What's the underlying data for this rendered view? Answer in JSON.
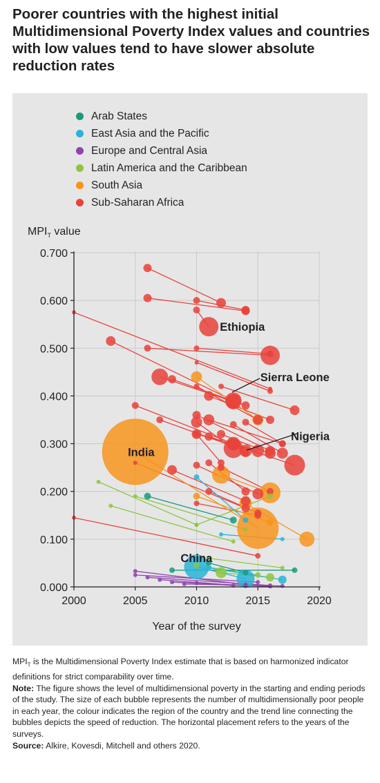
{
  "title": "Poorer countries with the highest initial Multidimensional Poverty Index values and countries with low values tend to have slower absolute reduction rates",
  "notes": {
    "definition_prefix": "MPI",
    "definition_sub": "T",
    "definition_rest": " is the Multidimensional Poverty Index estimate that is based on harmonized indicator definitions for strict comparability over time.",
    "note_label": "Note:",
    "note_text": " The figure shows the level of multidimensional poverty in the starting and ending periods of the study. The size of each bubble represents the number of multidimensionally poor people in each year, the colour indicates the region of the country and the trend line connecting the bubbles depicts the speed of reduction. The horizontal placement refers to the years of the surveys.",
    "source_label": "Source:",
    "source_text": " Alkire, Kovesdi, Mitchell and others 2020."
  },
  "chart_data": {
    "type": "scatter",
    "xlabel": "Year of the survey",
    "ylabel": "MPI",
    "ylabel_sub": "T",
    "ylabel_rest": " value",
    "xlim": [
      2000,
      2020
    ],
    "ylim": [
      0,
      0.7
    ],
    "xticks": [
      2000,
      2005,
      2010,
      2015,
      2020
    ],
    "xtick_labels": [
      "2000",
      "2005",
      "2010",
      "2015",
      "2020"
    ],
    "yticks": [
      0,
      0.1,
      0.2,
      0.3,
      0.4,
      0.5,
      0.6,
      0.7
    ],
    "ytick_labels": [
      "0.000",
      "0.100",
      "0.200",
      "0.300",
      "0.400",
      "0.500",
      "0.600",
      "0.700"
    ],
    "grid": true,
    "legend_position": "top-left",
    "regions": [
      {
        "name": "Arab States",
        "color": "#1a9a7c"
      },
      {
        "name": "East Asia and the Pacific",
        "color": "#2ab3d6"
      },
      {
        "name": "Europe and Central Asia",
        "color": "#8e44ad"
      },
      {
        "name": "Latin America and the Caribbean",
        "color": "#8dc63f"
      },
      {
        "name": "South Asia",
        "color": "#f7941d"
      },
      {
        "name": "Sub-Saharan Africa",
        "color": "#e8423a"
      }
    ],
    "annotations": [
      {
        "text": "Ethiopia",
        "x": 2011.9,
        "y": 0.545
      },
      {
        "text": "Sierra Leone",
        "x": 2015.2,
        "y": 0.44
      },
      {
        "text": "Nigeria",
        "x": 2017.7,
        "y": 0.316
      },
      {
        "text": "India",
        "x": 2004.4,
        "y": 0.283
      },
      {
        "text": "China",
        "x": 2008.7,
        "y": 0.061
      }
    ],
    "series": [
      {
        "region": 5,
        "x0": 2006,
        "y0": 0.668,
        "x1": 2012,
        "y1": 0.595,
        "s0": 6,
        "s1": 7
      },
      {
        "region": 5,
        "x0": 2006,
        "y0": 0.605,
        "x1": 2014,
        "y1": 0.578,
        "s0": 6,
        "s1": 6
      },
      {
        "region": 5,
        "x0": 2010,
        "y0": 0.6,
        "x1": 2014,
        "y1": 0.58,
        "s0": 5,
        "s1": 6
      },
      {
        "region": 5,
        "x0": 2010,
        "y0": 0.58,
        "x1": 2011,
        "y1": 0.545,
        "s0": 5,
        "s1": 14
      },
      {
        "region": 5,
        "x0": 2000,
        "y0": 0.575,
        "x1": 2016,
        "y1": 0.415,
        "s0": 3,
        "s1": 3
      },
      {
        "region": 5,
        "x0": 2003,
        "y0": 0.515,
        "x1": 2013,
        "y1": 0.39,
        "s0": 7,
        "s1": 12
      },
      {
        "region": 5,
        "x0": 2006,
        "y0": 0.5,
        "x1": 2016,
        "y1": 0.485,
        "s0": 5,
        "s1": 14
      },
      {
        "region": 5,
        "x0": 2010,
        "y0": 0.5,
        "x1": 2016,
        "y1": 0.488,
        "s0": 4,
        "s1": 5
      },
      {
        "region": 5,
        "x0": 2010,
        "y0": 0.47,
        "x1": 2016,
        "y1": 0.41,
        "s0": 3,
        "s1": 4
      },
      {
        "region": 5,
        "x0": 2007,
        "y0": 0.44,
        "x1": 2013,
        "y1": 0.388,
        "s0": 12,
        "s1": 11
      },
      {
        "region": 5,
        "x0": 2008,
        "y0": 0.435,
        "x1": 2014,
        "y1": 0.38,
        "s0": 6,
        "s1": 6
      },
      {
        "region": 5,
        "x0": 2010,
        "y0": 0.42,
        "x1": 2015,
        "y1": 0.35,
        "s0": 4,
        "s1": 7
      },
      {
        "region": 5,
        "x0": 2011,
        "y0": 0.4,
        "x1": 2016,
        "y1": 0.35,
        "s0": 7,
        "s1": 6
      },
      {
        "region": 5,
        "x0": 2012,
        "y0": 0.42,
        "x1": 2018,
        "y1": 0.37,
        "s0": 4,
        "s1": 7
      },
      {
        "region": 5,
        "x0": 2005,
        "y0": 0.38,
        "x1": 2013,
        "y1": 0.3,
        "s0": 5,
        "s1": 8
      },
      {
        "region": 5,
        "x0": 2007,
        "y0": 0.35,
        "x1": 2014,
        "y1": 0.285,
        "s0": 5,
        "s1": 9
      },
      {
        "region": 5,
        "x0": 2010,
        "y0": 0.36,
        "x1": 2016,
        "y1": 0.285,
        "s0": 6,
        "s1": 7
      },
      {
        "region": 5,
        "x0": 2010,
        "y0": 0.345,
        "x1": 2013,
        "y1": 0.29,
        "s0": 8,
        "s1": 14
      },
      {
        "region": 5,
        "x0": 2011,
        "y0": 0.35,
        "x1": 2017,
        "y1": 0.3,
        "s0": 8,
        "s1": 5
      },
      {
        "region": 5,
        "x0": 2010,
        "y0": 0.32,
        "x1": 2015,
        "y1": 0.285,
        "s0": 7,
        "s1": 9
      },
      {
        "region": 5,
        "x0": 2011,
        "y0": 0.315,
        "x1": 2018,
        "y1": 0.255,
        "s0": 6,
        "s1": 15
      },
      {
        "region": 5,
        "x0": 2012,
        "y0": 0.32,
        "x1": 2016,
        "y1": 0.28,
        "s0": 6,
        "s1": 8
      },
      {
        "region": 5,
        "x0": 2013,
        "y0": 0.34,
        "x1": 2017,
        "y1": 0.28,
        "s0": 5,
        "s1": 8
      },
      {
        "region": 5,
        "x0": 2014,
        "y0": 0.345,
        "x1": 2017,
        "y1": 0.3,
        "s0": 5,
        "s1": 5
      },
      {
        "region": 5,
        "x0": 2008,
        "y0": 0.245,
        "x1": 2014,
        "y1": 0.18,
        "s0": 7,
        "s1": 7
      },
      {
        "region": 5,
        "x0": 2010,
        "y0": 0.255,
        "x1": 2015,
        "y1": 0.195,
        "s0": 5,
        "s1": 8
      },
      {
        "region": 5,
        "x0": 2011,
        "y0": 0.26,
        "x1": 2014,
        "y1": 0.2,
        "s0": 5,
        "s1": 6
      },
      {
        "region": 5,
        "x0": 2012,
        "y0": 0.25,
        "x1": 2016,
        "y1": 0.2,
        "s0": 5,
        "s1": 5
      },
      {
        "region": 5,
        "x0": 2005,
        "y0": 0.26,
        "x1": 2014,
        "y1": 0.165,
        "s0": 3,
        "s1": 6
      },
      {
        "region": 5,
        "x0": 2011,
        "y0": 0.2,
        "x1": 2015,
        "y1": 0.155,
        "s0": 5,
        "s1": 5
      },
      {
        "region": 5,
        "x0": 2010,
        "y0": 0.175,
        "x1": 2015,
        "y1": 0.15,
        "s0": 4,
        "s1": 5
      },
      {
        "region": 5,
        "x0": 2000,
        "y0": 0.145,
        "x1": 2015,
        "y1": 0.065,
        "s0": 3,
        "s1": 4
      },
      {
        "region": 5,
        "x0": 2013,
        "y0": 0.3,
        "x1": 2014,
        "y1": 0.28,
        "s0": 10,
        "s1": 5
      },
      {
        "region": 5,
        "x0": 2010,
        "y0": 0.32,
        "x1": 2012,
        "y1": 0.26,
        "s0": 5,
        "s1": 5
      },
      {
        "region": 4,
        "x0": 2005,
        "y0": 0.283,
        "x1": 2015,
        "y1": 0.123,
        "s0": 48,
        "s1": 30
      },
      {
        "region": 4,
        "x0": 2010,
        "y0": 0.44,
        "x1": 2015,
        "y1": 0.35,
        "s0": 8,
        "s1": 8
      },
      {
        "region": 4,
        "x0": 2012,
        "y0": 0.235,
        "x1": 2016,
        "y1": 0.197,
        "s0": 13,
        "s1": 15
      },
      {
        "region": 4,
        "x0": 2014,
        "y0": 0.175,
        "x1": 2019,
        "y1": 0.1,
        "s0": 9,
        "s1": 11
      },
      {
        "region": 4,
        "x0": 2010,
        "y0": 0.19,
        "x1": 2016,
        "y1": 0.135,
        "s0": 5,
        "s1": 5
      },
      {
        "region": 3,
        "x0": 2002,
        "y0": 0.22,
        "x1": 2010,
        "y1": 0.13,
        "s0": 3,
        "s1": 3
      },
      {
        "region": 3,
        "x0": 2003,
        "y0": 0.17,
        "x1": 2013,
        "y1": 0.095,
        "s0": 3,
        "s1": 3
      },
      {
        "region": 3,
        "x0": 2005,
        "y0": 0.19,
        "x1": 2014,
        "y1": 0.12,
        "s0": 3,
        "s1": 3
      },
      {
        "region": 3,
        "x0": 2010,
        "y0": 0.13,
        "x1": 2016,
        "y1": 0.19,
        "s0": 3,
        "s1": 4
      },
      {
        "region": 3,
        "x0": 2011,
        "y0": 0.06,
        "x1": 2017,
        "y1": 0.04,
        "s0": 3,
        "s1": 3
      },
      {
        "region": 3,
        "x0": 2012,
        "y0": 0.03,
        "x1": 2016,
        "y1": 0.02,
        "s0": 8,
        "s1": 6
      },
      {
        "region": 3,
        "x0": 2010,
        "y0": 0.045,
        "x1": 2015,
        "y1": 0.025,
        "s0": 4,
        "s1": 4
      },
      {
        "region": 0,
        "x0": 2006,
        "y0": 0.19,
        "x1": 2013,
        "y1": 0.14,
        "s0": 5,
        "s1": 5
      },
      {
        "region": 0,
        "x0": 2008,
        "y0": 0.035,
        "x1": 2018,
        "y1": 0.035,
        "s0": 4,
        "s1": 4
      },
      {
        "region": 0,
        "x0": 2011,
        "y0": 0.05,
        "x1": 2014,
        "y1": 0.03,
        "s0": 4,
        "s1": 4
      },
      {
        "region": 1,
        "x0": 2010,
        "y0": 0.23,
        "x1": 2014,
        "y1": 0.14,
        "s0": 4,
        "s1": 4
      },
      {
        "region": 1,
        "x0": 2010,
        "y0": 0.042,
        "x1": 2014,
        "y1": 0.017,
        "s0": 18,
        "s1": 13
      },
      {
        "region": 1,
        "x0": 2011,
        "y0": 0.04,
        "x1": 2017,
        "y1": 0.015,
        "s0": 4,
        "s1": 6
      },
      {
        "region": 1,
        "x0": 2012,
        "y0": 0.11,
        "x1": 2017,
        "y1": 0.1,
        "s0": 3,
        "s1": 3
      },
      {
        "region": 2,
        "x0": 2005,
        "y0": 0.033,
        "x1": 2014,
        "y1": 0.005,
        "s0": 3,
        "s1": 3
      },
      {
        "region": 2,
        "x0": 2005,
        "y0": 0.025,
        "x1": 2015,
        "y1": 0.01,
        "s0": 3,
        "s1": 3
      },
      {
        "region": 2,
        "x0": 2006,
        "y0": 0.02,
        "x1": 2016,
        "y1": 0.003,
        "s0": 3,
        "s1": 3
      },
      {
        "region": 2,
        "x0": 2007,
        "y0": 0.015,
        "x1": 2014,
        "y1": 0.002,
        "s0": 3,
        "s1": 3
      },
      {
        "region": 2,
        "x0": 2008,
        "y0": 0.01,
        "x1": 2016,
        "y1": 0.001,
        "s0": 3,
        "s1": 3
      },
      {
        "region": 2,
        "x0": 2009,
        "y0": 0.006,
        "x1": 2017,
        "y1": 0.002,
        "s0": 3,
        "s1": 3
      },
      {
        "region": 2,
        "x0": 2010,
        "y0": 0.008,
        "x1": 2013,
        "y1": 0.003,
        "s0": 3,
        "s1": 3
      }
    ]
  }
}
